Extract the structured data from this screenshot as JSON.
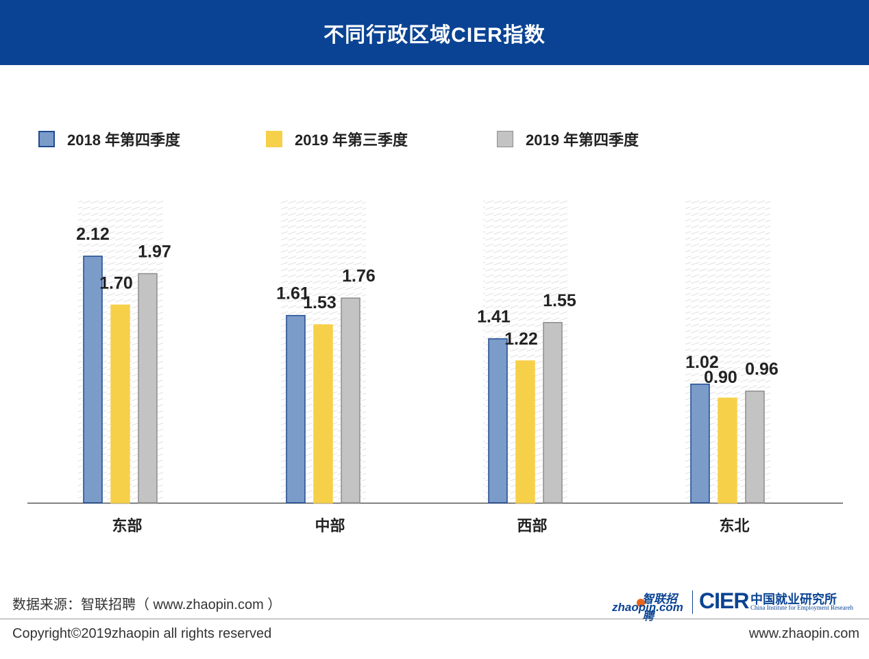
{
  "header": {
    "title": "不同行政区域CIER指数"
  },
  "chart_data": {
    "type": "bar",
    "title": "不同行政区域CIER指数",
    "categories": [
      "东部",
      "中部",
      "西部",
      "东北"
    ],
    "series": [
      {
        "name": "2018 年第四季度",
        "values": [
          2.12,
          1.61,
          1.41,
          1.02
        ],
        "color": "#7b9cc9",
        "border": "#1f4a8f"
      },
      {
        "name": "2019 年第三季度",
        "values": [
          1.7,
          1.53,
          1.22,
          0.9
        ],
        "color": "#f7d04a",
        "border": "#f7d04a"
      },
      {
        "name": "2019 年第四季度",
        "values": [
          1.97,
          1.76,
          1.55,
          0.96
        ],
        "color": "#c3c3c3",
        "border": "#8c8c8c"
      }
    ],
    "labels": [
      [
        "2.12",
        "1.61",
        "1.41",
        "1.02"
      ],
      [
        "1.70",
        "1.53",
        "1.22",
        "0.90"
      ],
      [
        "1.97",
        "1.76",
        "1.55",
        "0.96"
      ]
    ],
    "ylim": [
      0,
      2.12
    ],
    "xlabel": "",
    "ylabel": "",
    "legend": "top"
  },
  "footer": {
    "source": "数据来源：智联招聘（ www.zhaopin.com ）",
    "copyright": "Copyright©2019zhaopin all rights reserved",
    "site": "www.zhaopin.com"
  },
  "logos": {
    "zhaopin_cn": "智联招聘",
    "zhaopin_en": "zhaopin.com",
    "cier": "CIER",
    "cier_cn": "中国就业研究所",
    "cier_en": "China Institute for Employment Researeh"
  },
  "colors": {
    "header_bg": "#0a4393"
  }
}
